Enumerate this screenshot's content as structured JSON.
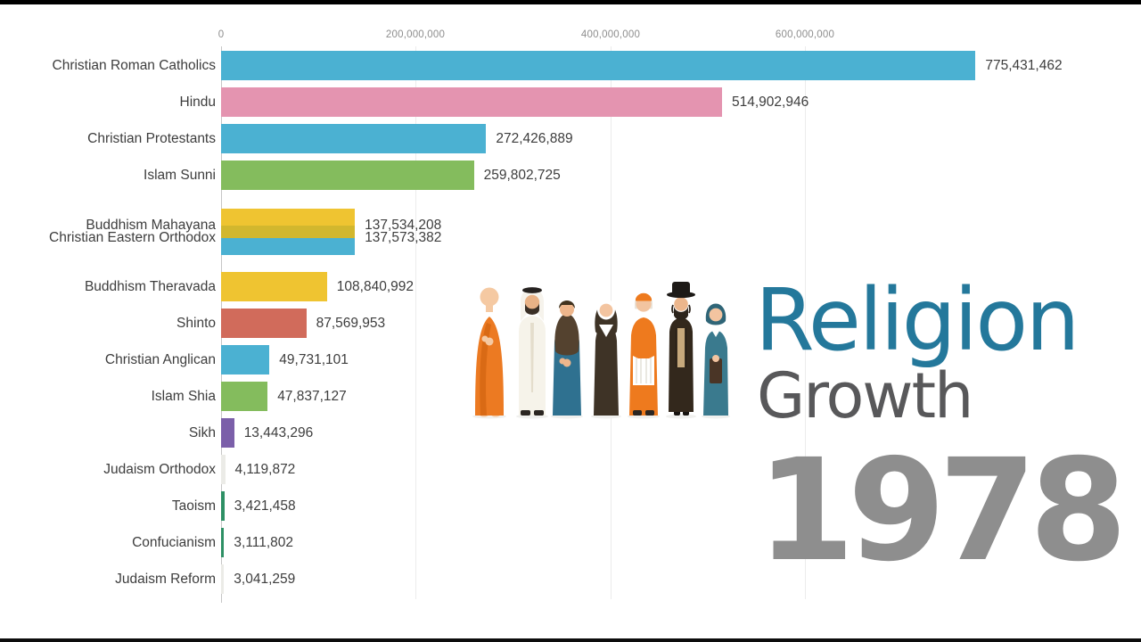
{
  "frame": {
    "background": "#ffffff",
    "letterbox_color": "#000000"
  },
  "title_block": {
    "line1": "Religion",
    "line2": "Growth",
    "year": "1978",
    "line1_color": "#24789b",
    "line2_color": "#58585a",
    "year_color": "#8e8e8e"
  },
  "illustration": {
    "description": "seven stylized religious figures standing in a row",
    "figures": [
      "buddhist-monk",
      "muslim-man",
      "muslim-woman",
      "catholic-nun",
      "catholic-cardinal",
      "jewish-orthodox-man",
      "christian-woman"
    ]
  },
  "chart_data": {
    "type": "bar",
    "orientation": "horizontal",
    "title": "Religion Growth",
    "year": "1978",
    "xlabel": "",
    "ylabel": "",
    "x_axis": {
      "min": 0,
      "tick_values": [
        0,
        200000000,
        400000000,
        600000000
      ],
      "tick_labels": [
        "0",
        "200,000,000",
        "400,000,000",
        "600,000,000"
      ],
      "grid": true
    },
    "bars": [
      {
        "label": "Christian Roman Catholics",
        "value": 775431462,
        "value_label": "775,431,462",
        "color": "#4bb1d2"
      },
      {
        "label": "Hindu",
        "value": 514902946,
        "value_label": "514,902,946",
        "color": "#e494b0"
      },
      {
        "label": "Christian Protestants",
        "value": 272426889,
        "value_label": "272,426,889",
        "color": "#4bb1d2"
      },
      {
        "label": "Islam Sunni",
        "value": 259802725,
        "value_label": "259,802,725",
        "color": "#84bc5d"
      },
      {
        "label": "Buddhism Mahayana",
        "value": 137534208,
        "value_label": "137,534,208",
        "color": "#efc431"
      },
      {
        "label": "Christian Eastern Orthodox",
        "value": 137573382,
        "value_label": "137,573,382",
        "color": "#4bb1d2"
      },
      {
        "label": "Buddhism Theravada",
        "value": 108840992,
        "value_label": "108,840,992",
        "color": "#efc431"
      },
      {
        "label": "Shinto",
        "value": 87569953,
        "value_label": "87,569,953",
        "color": "#d16b5b"
      },
      {
        "label": "Christian Anglican",
        "value": 49731101,
        "value_label": "49,731,101",
        "color": "#4bb1d2"
      },
      {
        "label": "Islam Shia",
        "value": 47837127,
        "value_label": "47,837,127",
        "color": "#84bc5d"
      },
      {
        "label": "Sikh",
        "value": 13443296,
        "value_label": "13,443,296",
        "color": "#7b5fa9"
      },
      {
        "label": "Judaism Orthodox",
        "value": 4119872,
        "value_label": "4,119,872",
        "color": "#ebebe7"
      },
      {
        "label": "Taoism",
        "value": 3421458,
        "value_label": "3,421,458",
        "color": "#2e9065"
      },
      {
        "label": "Confucianism",
        "value": 3111802,
        "value_label": "3,111,802",
        "color": "#2e9065"
      },
      {
        "label": "Judaism Reform",
        "value": 3041259,
        "value_label": "3,041,259",
        "color": "#ebebe7"
      }
    ],
    "overlap": {
      "bars": [
        "Buddhism Mahayana",
        "Christian Eastern Orthodox"
      ],
      "shade_color": "#d2b72e"
    }
  }
}
